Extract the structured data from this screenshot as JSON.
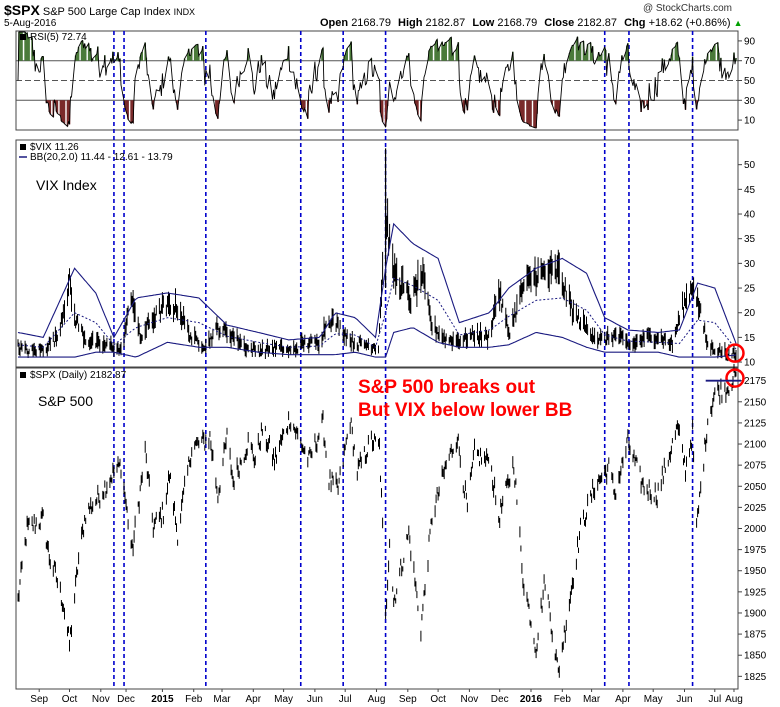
{
  "header": {
    "symbol": "$SPX",
    "name": "S&P 500 Large Cap Index",
    "exchange": "INDX",
    "date": "5-Aug-2016",
    "watermark": "@ StockCharts.com",
    "ohlc": {
      "open_label": "Open",
      "open": "2168.79",
      "high_label": "High",
      "high": "2182.87",
      "low_label": "Low",
      "low": "2168.79",
      "close_label": "Close",
      "close": "2182.87",
      "chg_label": "Chg",
      "chg": "+18.62 (+0.86%)",
      "chg_arrow": "▲"
    }
  },
  "colors": {
    "price": "#000000",
    "bollinger": "#1a1a80",
    "bb_mid": "#1a1a80",
    "vline": "#0000cc",
    "rsi_over": "#4a7a3a",
    "rsi_under": "#7a2a2a",
    "annotation": "#ff0000",
    "grid": "#b0b0b0"
  },
  "chart_data": [
    {
      "type": "line",
      "panel": "rsi",
      "legend": "RSI(5) 72.74",
      "series": [
        {
          "name": "RSI(5)",
          "last": 72.74
        }
      ],
      "yticks": [
        10,
        30,
        50,
        70,
        90
      ],
      "ylim": [
        0,
        100
      ],
      "reference_lines": [
        30,
        50,
        70
      ]
    },
    {
      "type": "line",
      "panel": "vix",
      "title": "VIX Index",
      "legend": [
        "$VIX 11.26",
        "BB(20,2.0) 11.44 - 12.61 - 13.79"
      ],
      "series": [
        {
          "name": "$VIX",
          "last": 11.26
        },
        {
          "name": "BB(20,2.0)",
          "last": [
            11.44,
            12.61,
            13.79
          ]
        }
      ],
      "yticks": [
        10,
        15,
        20,
        25,
        30,
        35,
        40,
        45,
        50
      ],
      "ylim": [
        9,
        55
      ],
      "keypoints": [
        [
          "2014-08-25",
          13
        ],
        [
          "2014-09-05",
          12
        ],
        [
          "2014-09-19",
          12.5
        ],
        [
          "2014-10-03",
          15
        ],
        [
          "2014-10-15",
          26
        ],
        [
          "2014-10-20",
          19
        ],
        [
          "2014-10-31",
          14.5
        ],
        [
          "2014-11-14",
          13.3
        ],
        [
          "2014-11-28",
          13.2
        ],
        [
          "2014-12-05",
          12
        ],
        [
          "2014-12-16",
          23.5
        ],
        [
          "2014-12-24",
          14.5
        ],
        [
          "2015-01-02",
          17.8
        ],
        [
          "2015-01-16",
          20.9
        ],
        [
          "2015-01-30",
          21
        ],
        [
          "2015-02-13",
          14.7
        ],
        [
          "2015-02-27",
          13.3
        ],
        [
          "2015-03-11",
          16.8
        ],
        [
          "2015-03-27",
          15.1
        ],
        [
          "2015-04-10",
          12.6
        ],
        [
          "2015-04-24",
          12.3
        ],
        [
          "2015-05-08",
          12.9
        ],
        [
          "2015-05-22",
          12.1
        ],
        [
          "2015-06-05",
          13.8
        ],
        [
          "2015-06-19",
          13.9
        ],
        [
          "2015-06-29",
          18.9
        ],
        [
          "2015-07-10",
          16.8
        ],
        [
          "2015-07-24",
          13.7
        ],
        [
          "2015-08-07",
          13.4
        ],
        [
          "2015-08-17",
          13
        ],
        [
          "2015-08-24",
          40.7
        ],
        [
          "2015-08-31",
          28.4
        ],
        [
          "2015-09-18",
          22.3
        ],
        [
          "2015-09-29",
          27.6
        ],
        [
          "2015-10-09",
          17.1
        ],
        [
          "2015-10-23",
          14.5
        ],
        [
          "2015-11-06",
          14.3
        ],
        [
          "2015-11-20",
          15.5
        ],
        [
          "2015-12-04",
          14.8
        ],
        [
          "2015-12-14",
          24.4
        ],
        [
          "2015-12-24",
          15.7
        ],
        [
          "2016-01-07",
          24.9
        ],
        [
          "2016-01-20",
          27.6
        ],
        [
          "2016-02-11",
          28.1
        ],
        [
          "2016-02-26",
          19.8
        ],
        [
          "2016-03-11",
          16.5
        ],
        [
          "2016-03-24",
          14.3
        ],
        [
          "2016-04-08",
          15.3
        ],
        [
          "2016-04-22",
          13.2
        ],
        [
          "2016-05-06",
          14.7
        ],
        [
          "2016-05-20",
          15.2
        ],
        [
          "2016-06-03",
          13.5
        ],
        [
          "2016-06-13",
          20.9
        ],
        [
          "2016-06-24",
          25.8
        ],
        [
          "2016-07-08",
          13.2
        ],
        [
          "2016-07-22",
          12.0
        ],
        [
          "2016-08-05",
          11.26
        ]
      ],
      "bands": [
        [
          "2014-08-25",
          11,
          16
        ],
        [
          "2014-09-19",
          11,
          15
        ],
        [
          "2014-10-20",
          11,
          29
        ],
        [
          "2014-11-10",
          12,
          24
        ],
        [
          "2014-11-28",
          12,
          15
        ],
        [
          "2014-12-20",
          11,
          23
        ],
        [
          "2015-01-20",
          14,
          24
        ],
        [
          "2015-02-20",
          13,
          23
        ],
        [
          "2015-03-20",
          13,
          17.5
        ],
        [
          "2015-04-20",
          12,
          16
        ],
        [
          "2015-05-20",
          11.5,
          14.5
        ],
        [
          "2015-06-20",
          11.5,
          15
        ],
        [
          "2015-07-05",
          11.5,
          20
        ],
        [
          "2015-07-25",
          12,
          19
        ],
        [
          "2015-08-14",
          11,
          15
        ],
        [
          "2015-08-24",
          11,
          29
        ],
        [
          "2015-09-01",
          16,
          38
        ],
        [
          "2015-09-20",
          17,
          34
        ],
        [
          "2015-10-15",
          14,
          31
        ],
        [
          "2015-11-05",
          13,
          18
        ],
        [
          "2015-12-05",
          13,
          20
        ],
        [
          "2015-12-24",
          13.5,
          25
        ],
        [
          "2016-01-20",
          16,
          29
        ],
        [
          "2016-02-15",
          15,
          31
        ],
        [
          "2016-03-10",
          13,
          28
        ],
        [
          "2016-03-28",
          12,
          19
        ],
        [
          "2016-04-20",
          12,
          16.5
        ],
        [
          "2016-05-20",
          12,
          16
        ],
        [
          "2016-06-10",
          11,
          16.5
        ],
        [
          "2016-06-28",
          11,
          26
        ],
        [
          "2016-07-15",
          11,
          25
        ],
        [
          "2016-08-05",
          11.44,
          13.79
        ]
      ]
    },
    {
      "type": "line",
      "panel": "price",
      "title": "S&P 500",
      "legend": "$SPX (Daily) 2182.87",
      "series": [
        {
          "name": "$SPX (Daily)",
          "last": 2182.87
        }
      ],
      "yticks": [
        1825,
        1850,
        1875,
        1900,
        1925,
        1950,
        1975,
        2000,
        2025,
        2050,
        2075,
        2100,
        2125,
        2150,
        2175
      ],
      "ylim": [
        1810,
        2190
      ],
      "keypoints": [
        [
          "2014-08-25",
          1915
        ],
        [
          "2014-09-03",
          2000
        ],
        [
          "2014-09-19",
          2011
        ],
        [
          "2014-09-25",
          1966
        ],
        [
          "2014-10-01",
          1946
        ],
        [
          "2014-10-09",
          1910
        ],
        [
          "2014-10-15",
          1862
        ],
        [
          "2014-10-24",
          1964
        ],
        [
          "2014-10-31",
          2018
        ],
        [
          "2014-11-14",
          2039
        ],
        [
          "2014-11-28",
          2067
        ],
        [
          "2014-12-05",
          2075
        ],
        [
          "2014-12-16",
          1972
        ],
        [
          "2014-12-29",
          2090
        ],
        [
          "2015-01-06",
          2002
        ],
        [
          "2015-01-16",
          2019
        ],
        [
          "2015-01-22",
          2063
        ],
        [
          "2015-01-30",
          1994
        ],
        [
          "2015-02-13",
          2096
        ],
        [
          "2015-02-27",
          2104
        ],
        [
          "2015-03-03",
          2108
        ],
        [
          "2015-03-11",
          2040
        ],
        [
          "2015-03-20",
          2108
        ],
        [
          "2015-03-26",
          2056
        ],
        [
          "2015-04-10",
          2102
        ],
        [
          "2015-04-17",
          2081
        ],
        [
          "2015-04-24",
          2117
        ],
        [
          "2015-05-06",
          2080
        ],
        [
          "2015-05-21",
          2131
        ],
        [
          "2015-06-09",
          2080
        ],
        [
          "2015-06-23",
          2124
        ],
        [
          "2015-06-29",
          2057
        ],
        [
          "2015-07-08",
          2046
        ],
        [
          "2015-07-20",
          2128
        ],
        [
          "2015-07-27",
          2067
        ],
        [
          "2015-08-10",
          2104
        ],
        [
          "2015-08-18",
          2096
        ],
        [
          "2015-08-20",
          2035
        ],
        [
          "2015-08-24",
          1893
        ],
        [
          "2015-08-28",
          1988
        ],
        [
          "2015-09-01",
          1913
        ],
        [
          "2015-09-16",
          1995
        ],
        [
          "2015-09-28",
          1881
        ],
        [
          "2015-10-09",
          2014
        ],
        [
          "2015-10-23",
          2075
        ],
        [
          "2015-11-03",
          2109
        ],
        [
          "2015-11-13",
          2023
        ],
        [
          "2015-11-20",
          2089
        ],
        [
          "2015-12-02",
          2079
        ],
        [
          "2015-12-04",
          2091
        ],
        [
          "2015-12-14",
          2012
        ],
        [
          "2015-12-29",
          2078
        ],
        [
          "2016-01-07",
          1943
        ],
        [
          "2016-01-20",
          1859
        ],
        [
          "2016-01-29",
          1940
        ],
        [
          "2016-02-11",
          1829
        ],
        [
          "2016-02-23",
          1921
        ],
        [
          "2016-03-04",
          1999
        ],
        [
          "2016-03-18",
          2050
        ],
        [
          "2016-04-01",
          2072
        ],
        [
          "2016-04-07",
          2041
        ],
        [
          "2016-04-20",
          2102
        ],
        [
          "2016-05-05",
          2050
        ],
        [
          "2016-05-19",
          2040
        ],
        [
          "2016-06-08",
          2119
        ],
        [
          "2016-06-16",
          2071
        ],
        [
          "2016-06-23",
          2113
        ],
        [
          "2016-06-27",
          2000
        ],
        [
          "2016-07-08",
          2129
        ],
        [
          "2016-07-15",
          2161
        ],
        [
          "2016-07-27",
          2166
        ],
        [
          "2016-08-05",
          2182.87
        ]
      ]
    }
  ],
  "xaxis": {
    "months": [
      {
        "label": "Sep",
        "date": "2014-09-15"
      },
      {
        "label": "Oct",
        "date": "2014-10-15"
      },
      {
        "label": "Nov",
        "date": "2014-11-15"
      },
      {
        "label": "Dec",
        "date": "2014-12-10"
      },
      {
        "label": "2015",
        "date": "2015-01-15"
      },
      {
        "label": "Feb",
        "date": "2015-02-15"
      },
      {
        "label": "Mar",
        "date": "2015-03-15"
      },
      {
        "label": "Apr",
        "date": "2015-04-15"
      },
      {
        "label": "May",
        "date": "2015-05-15"
      },
      {
        "label": "Jun",
        "date": "2015-06-15"
      },
      {
        "label": "Jul",
        "date": "2015-07-15"
      },
      {
        "label": "Aug",
        "date": "2015-08-15"
      },
      {
        "label": "Sep",
        "date": "2015-09-15"
      },
      {
        "label": "Oct",
        "date": "2015-10-15"
      },
      {
        "label": "Nov",
        "date": "2015-11-15"
      },
      {
        "label": "Dec",
        "date": "2015-12-15"
      },
      {
        "label": "2016",
        "date": "2016-01-15"
      },
      {
        "label": "Feb",
        "date": "2016-02-15"
      },
      {
        "label": "Mar",
        "date": "2016-03-15"
      },
      {
        "label": "Apr",
        "date": "2016-04-15"
      },
      {
        "label": "May",
        "date": "2016-05-15"
      },
      {
        "label": "Jun",
        "date": "2016-06-15"
      },
      {
        "label": "Jul",
        "date": "2016-07-15"
      },
      {
        "label": "Aug",
        "date": "2016-08-03"
      }
    ],
    "vertical_lines": [
      "2014-11-28",
      "2014-12-08",
      "2015-02-27",
      "2015-06-01",
      "2015-07-13",
      "2015-08-24",
      "2016-03-28",
      "2016-04-21",
      "2016-06-23"
    ]
  },
  "annotations": {
    "line1": "S&P 500 breaks out",
    "line2": "But VIX below lower BB"
  }
}
